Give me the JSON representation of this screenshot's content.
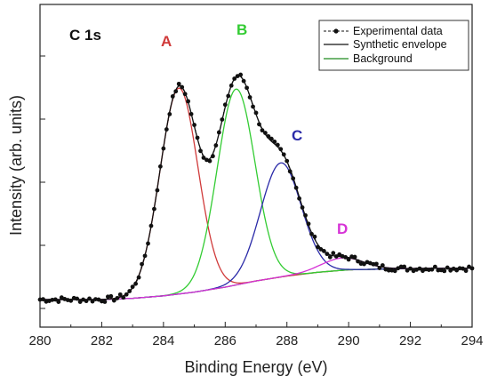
{
  "chart_data": {
    "type": "line",
    "title": "",
    "panel_label": "C 1s",
    "xlabel": "Binding Energy (eV)",
    "ylabel": "Intensity (arb. units)",
    "xlim": [
      280,
      294
    ],
    "ylim": [
      0,
      1.1
    ],
    "x_ticks": [
      280,
      282,
      284,
      286,
      288,
      290,
      292,
      294
    ],
    "x_tick_labels": [
      "280",
      "282",
      "284",
      "286",
      "288",
      "290",
      "292",
      "294"
    ],
    "y_ticks_unlabeled": 5,
    "grid": false,
    "legend_position": "top-right",
    "legend": [
      {
        "label": "Experimental data",
        "style": "dashed-dot"
      },
      {
        "label": "Synthetic envelope",
        "style": "solid",
        "color": "#111111"
      },
      {
        "label": "Background",
        "style": "solid",
        "color": "#1e8a1e"
      }
    ],
    "background": {
      "x": [
        280,
        282,
        283,
        284,
        285,
        286,
        287,
        288,
        289,
        290,
        292,
        294
      ],
      "y": [
        0.0,
        0.0,
        0.005,
        0.015,
        0.03,
        0.05,
        0.075,
        0.095,
        0.11,
        0.12,
        0.125,
        0.127
      ]
    },
    "components": [
      {
        "label": "A",
        "color": "#d03a3a",
        "center": 284.5,
        "amplitude": 0.83,
        "fwhm": 1.45
      },
      {
        "label": "B",
        "color": "#33cc33",
        "center": 286.35,
        "amplitude": 0.79,
        "fwhm": 1.45
      },
      {
        "label": "C",
        "color": "#2a2aa8",
        "center": 287.8,
        "amplitude": 0.46,
        "fwhm": 1.55
      },
      {
        "label": "D",
        "color": "#d633d6",
        "center": 289.8,
        "amplitude": 0.05,
        "fwhm": 1.6
      }
    ],
    "experimental_data_range": [
      280,
      294
    ],
    "colors": {
      "A": "#d03a3a",
      "B": "#33cc33",
      "C": "#2a2aa8",
      "D": "#d633d6",
      "envelope": "#111111",
      "background": "#1e8a1e",
      "data": "#111111"
    }
  }
}
